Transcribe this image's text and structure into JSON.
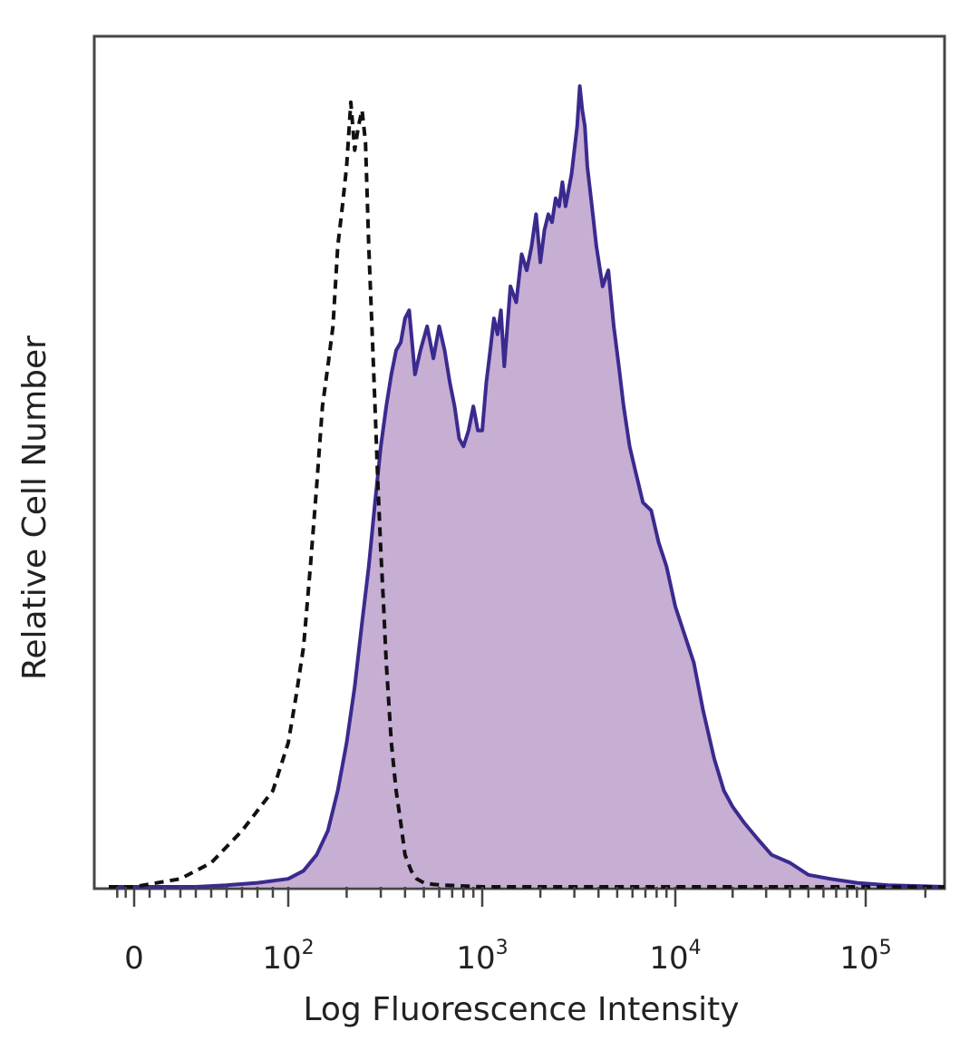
{
  "chart_data": {
    "type": "area",
    "xlabel": "Log Fluorescence Intensity",
    "ylabel": "Relative Cell Number",
    "x_scale": "biexponential",
    "xlim": [
      -30,
      250000
    ],
    "ylim": [
      0,
      100
    ],
    "grid": false,
    "x_ticks": [
      {
        "value": 0,
        "base": "0",
        "exp": ""
      },
      {
        "value": 100,
        "base": "10",
        "exp": "2"
      },
      {
        "value": 1000,
        "base": "10",
        "exp": "3"
      },
      {
        "value": 10000,
        "base": "10",
        "exp": "4"
      },
      {
        "value": 100000,
        "base": "10",
        "exp": "5"
      }
    ],
    "series": [
      {
        "style": "filled-solid",
        "fill": "#c7aed3",
        "stroke": "#3b2a8e",
        "x": [
          -30,
          0,
          40,
          60,
          80,
          100,
          120,
          140,
          160,
          180,
          200,
          220,
          240,
          260,
          280,
          300,
          320,
          340,
          360,
          380,
          400,
          420,
          450,
          480,
          520,
          560,
          600,
          640,
          680,
          720,
          760,
          800,
          850,
          900,
          950,
          1000,
          1050,
          1100,
          1150,
          1200,
          1250,
          1300,
          1400,
          1500,
          1600,
          1700,
          1800,
          1900,
          2000,
          2100,
          2200,
          2300,
          2400,
          2500,
          2600,
          2700,
          2800,
          2900,
          3000,
          3100,
          3200,
          3300,
          3400,
          3500,
          3700,
          3900,
          4200,
          4500,
          4800,
          5100,
          5400,
          5800,
          6200,
          6800,
          7500,
          8200,
          9000,
          10000,
          11000,
          12500,
          14000,
          16000,
          18000,
          20000,
          23000,
          27000,
          32000,
          40000,
          50000,
          65000,
          90000,
          130000,
          250000
        ],
        "y": [
          0,
          0,
          0,
          0.2,
          0.5,
          1,
          2,
          4,
          7,
          12,
          18,
          25,
          33,
          40,
          48,
          55,
          60,
          64,
          67,
          68,
          71,
          72,
          64,
          67,
          70,
          66,
          70,
          67,
          63,
          60,
          56,
          55,
          57,
          60,
          57,
          57,
          63,
          67,
          71,
          69,
          72,
          65,
          75,
          73,
          79,
          77,
          80,
          84,
          78,
          82,
          84,
          83,
          86,
          85,
          88,
          85,
          87,
          89,
          92,
          95,
          100,
          97,
          95,
          90,
          85,
          80,
          75,
          77,
          70,
          65,
          60,
          55,
          52,
          48,
          47,
          43,
          40,
          35,
          32,
          28,
          22,
          16,
          12,
          10,
          8,
          6,
          4,
          3,
          1.5,
          1,
          0.5,
          0.2,
          0
        ]
      },
      {
        "style": "dashed",
        "stroke": "#111111",
        "x": [
          -30,
          0,
          30,
          50,
          70,
          90,
          100,
          110,
          120,
          130,
          140,
          150,
          160,
          170,
          180,
          190,
          200,
          210,
          220,
          230,
          240,
          250,
          260,
          270,
          280,
          290,
          300,
          310,
          320,
          340,
          360,
          380,
          400,
          430,
          460,
          500,
          560,
          650,
          800,
          1000,
          250000
        ],
        "y": [
          0,
          0,
          1,
          3,
          7,
          12,
          18,
          24,
          30,
          40,
          50,
          60,
          65,
          70,
          80,
          85,
          90,
          98,
          92,
          95,
          97,
          93,
          80,
          70,
          60,
          50,
          42,
          35,
          28,
          18,
          12,
          8,
          4,
          2,
          1,
          0.5,
          0.3,
          0.2,
          0.1,
          0,
          0
        ]
      }
    ]
  }
}
